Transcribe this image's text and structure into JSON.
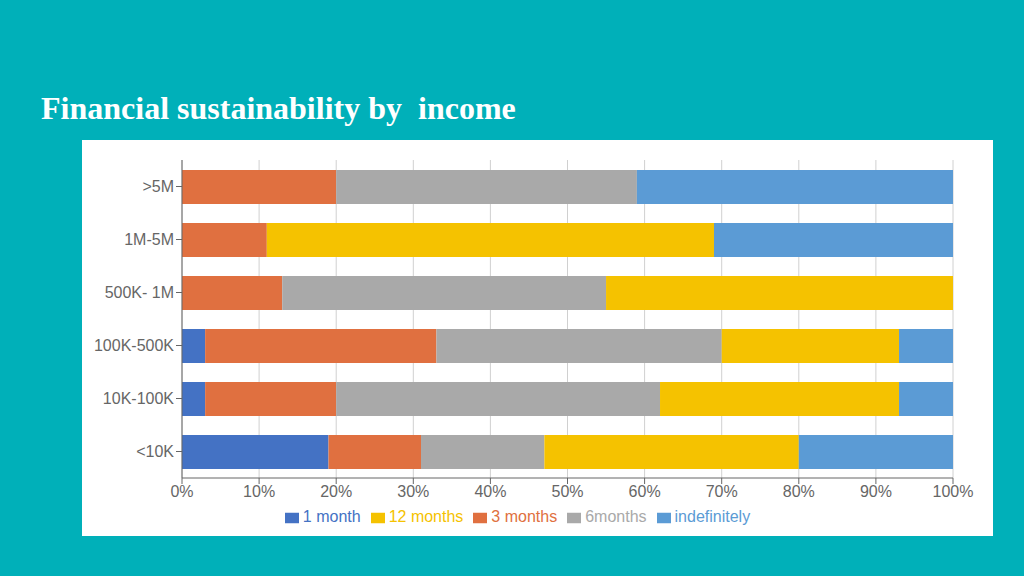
{
  "chart_data": {
    "type": "bar",
    "title": "Financial sustainability by  income",
    "orientation": "horizontal",
    "stacked": true,
    "categories": [
      ">5M",
      "1M-5M",
      "500K- 1M",
      "100K-500K",
      "10K-100K",
      "<10K"
    ],
    "series": [
      {
        "name": "1 month",
        "color": "#4472c4",
        "values": [
          0,
          0,
          0,
          3,
          3,
          19
        ]
      },
      {
        "name": "3 months",
        "color": "#e07040",
        "values": [
          20,
          11,
          13,
          30,
          17,
          12
        ]
      },
      {
        "name": "6months",
        "color": "#a9a9a9",
        "values": [
          39,
          0,
          42,
          37,
          42,
          16
        ]
      },
      {
        "name": "12 months",
        "color": "#f5c200",
        "values": [
          0,
          58,
          45,
          23,
          31,
          33
        ]
      },
      {
        "name": "indefinitely",
        "color": "#5b9bd5",
        "values": [
          41,
          31,
          0,
          7,
          7,
          20
        ]
      }
    ],
    "xlim": [
      0,
      100
    ],
    "xticks": [
      {
        "value": 0,
        "label": "0%"
      },
      {
        "value": 10,
        "label": "10%"
      },
      {
        "value": 20,
        "label": "20%"
      },
      {
        "value": 30,
        "label": "30%"
      },
      {
        "value": 40,
        "label": "40%"
      },
      {
        "value": 50,
        "label": "50%"
      },
      {
        "value": 60,
        "label": "60%"
      },
      {
        "value": 70,
        "label": "70%"
      },
      {
        "value": 80,
        "label": "80%"
      },
      {
        "value": 90,
        "label": "90%"
      },
      {
        "value": 100,
        "label": "100%"
      }
    ],
    "grid": true,
    "legend": "bottom"
  }
}
